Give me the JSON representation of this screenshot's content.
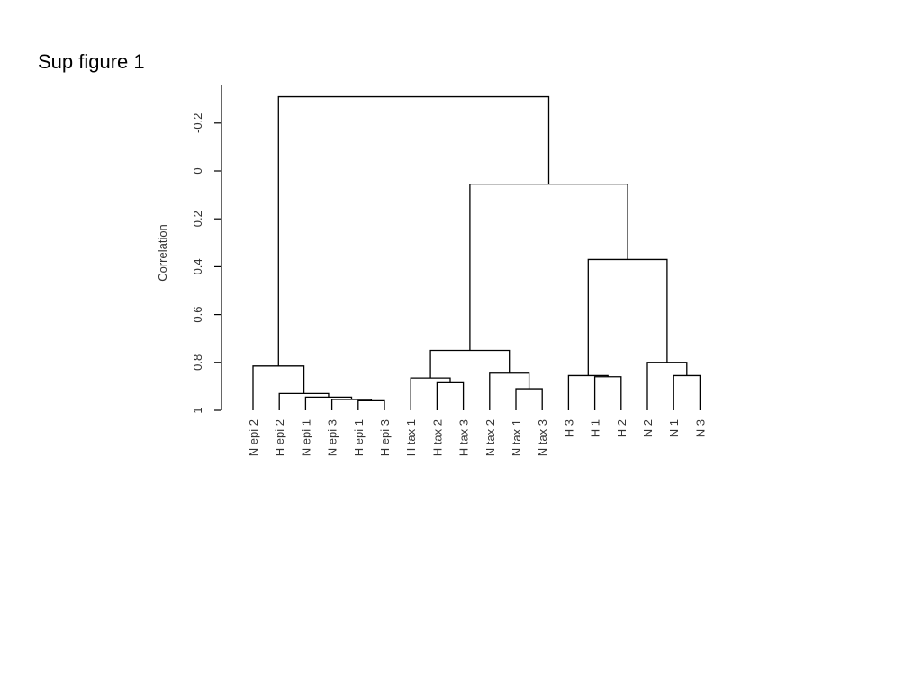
{
  "title": "Sup figure 1",
  "chart_data": {
    "type": "dendrogram",
    "ylabel": "Correlation",
    "ylim": [
      -0.35,
      1
    ],
    "y_ticks": [
      -0.2,
      0,
      0.2,
      0.4,
      0.6,
      0.8,
      1
    ],
    "y_tick_labels": [
      "-0.2",
      "0",
      "0.2",
      "0.4",
      "0.6",
      "0.8",
      "1"
    ],
    "leaves": [
      "N epi 2",
      "H epi 2",
      "N epi 1",
      "N epi 3",
      "H epi 1",
      "H epi 3",
      "H tax 1",
      "H tax 2",
      "H tax 3",
      "N tax 2",
      "N tax 1",
      "N tax 3",
      "H 3",
      "H 1",
      "H 2",
      "N 2",
      "N 1",
      "N 3"
    ],
    "merges": [
      {
        "left": "H epi 1",
        "right": "H epi 3",
        "height": 0.96
      },
      {
        "left": "N epi 3",
        "right": "m1",
        "height": 0.955
      },
      {
        "left": "N epi 1",
        "right": "m2",
        "height": 0.945
      },
      {
        "left": "H epi 2",
        "right": "m3",
        "height": 0.93
      },
      {
        "left": "N epi 2",
        "right": "m4",
        "height": 0.815
      },
      {
        "left": "H tax 2",
        "right": "H tax 3",
        "height": 0.885
      },
      {
        "left": "H tax 1",
        "right": "m6",
        "height": 0.865
      },
      {
        "left": "N tax 1",
        "right": "N tax 3",
        "height": 0.91
      },
      {
        "left": "N tax 2",
        "right": "m8",
        "height": 0.845
      },
      {
        "left": "m7",
        "right": "m9",
        "height": 0.75
      },
      {
        "left": "H 1",
        "right": "H 2",
        "height": 0.86
      },
      {
        "left": "H 3",
        "right": "m11",
        "height": 0.855
      },
      {
        "left": "N 1",
        "right": "N 3",
        "height": 0.855
      },
      {
        "left": "N 2",
        "right": "m13",
        "height": 0.8
      },
      {
        "left": "m12",
        "right": "m14",
        "height": 0.37
      },
      {
        "left": "m10",
        "right": "m15",
        "height": 0.055
      },
      {
        "left": "m5",
        "right": "m16",
        "height": -0.31
      }
    ]
  }
}
